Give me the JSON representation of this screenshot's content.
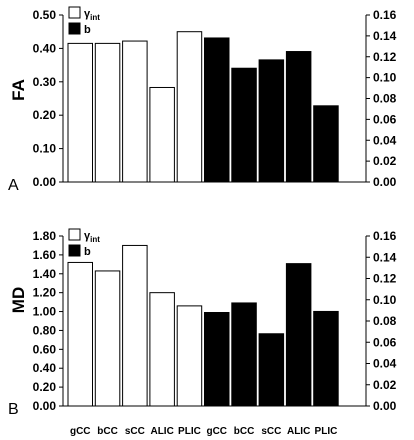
{
  "chart_data": [
    {
      "type": "bar",
      "panel_label": "A",
      "ylabel": "FA",
      "categories": [
        "gCC",
        "bCC",
        "sCC",
        "ALIC",
        "PLIC",
        "gCC",
        "bCC",
        "sCC",
        "ALIC",
        "PLIC"
      ],
      "series": [
        {
          "name": "γint",
          "legend_main": "γ",
          "legend_sub": "int",
          "axis": "left",
          "fill": "#ffffff",
          "values": [
            0.415,
            0.415,
            0.422,
            0.283,
            0.45,
            null,
            null,
            null,
            null,
            null
          ]
        },
        {
          "name": "b",
          "legend_main": "b",
          "legend_sub": "",
          "axis": "right",
          "fill": "#000000",
          "values": [
            null,
            null,
            null,
            null,
            null,
            0.138,
            0.109,
            0.117,
            0.125,
            0.073
          ]
        }
      ],
      "left_axis": {
        "ylim": [
          0,
          0.5
        ],
        "ticks": [
          "0.00",
          "0.10",
          "0.20",
          "0.30",
          "0.40",
          "0.50"
        ]
      },
      "right_axis": {
        "ylim": [
          0,
          0.16
        ],
        "ticks": [
          "0.00",
          "0.02",
          "0.04",
          "0.06",
          "0.08",
          "0.10",
          "0.12",
          "0.14",
          "0.16"
        ]
      },
      "legend_position": "top-left",
      "grid": false
    },
    {
      "type": "bar",
      "panel_label": "B",
      "ylabel": "MD",
      "categories": [
        "gCC",
        "bCC",
        "sCC",
        "ALIC",
        "PLIC",
        "gCC",
        "bCC",
        "sCC",
        "ALIC",
        "PLIC"
      ],
      "series": [
        {
          "name": "γint",
          "legend_main": "γ",
          "legend_sub": "int",
          "axis": "left",
          "fill": "#ffffff",
          "values": [
            1.52,
            1.43,
            1.7,
            1.2,
            1.06,
            null,
            null,
            null,
            null,
            null
          ]
        },
        {
          "name": "b",
          "legend_main": "b",
          "legend_sub": "",
          "axis": "right",
          "fill": "#000000",
          "values": [
            null,
            null,
            null,
            null,
            null,
            0.088,
            0.097,
            0.068,
            0.134,
            0.089
          ]
        }
      ],
      "left_axis": {
        "ylim": [
          0,
          1.8
        ],
        "ticks": [
          "0.00",
          "0.20",
          "0.40",
          "0.60",
          "0.80",
          "1.00",
          "1.20",
          "1.40",
          "1.60",
          "1.80"
        ]
      },
      "right_axis": {
        "ylim": [
          0,
          0.16
        ],
        "ticks": [
          "0.00",
          "0.02",
          "0.04",
          "0.06",
          "0.08",
          "0.10",
          "0.12",
          "0.14",
          "0.16"
        ]
      },
      "legend_position": "top-left",
      "grid": false
    }
  ]
}
